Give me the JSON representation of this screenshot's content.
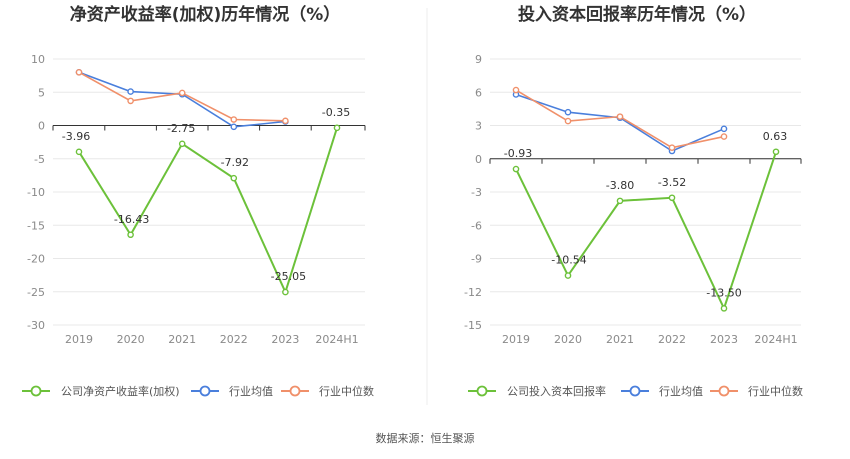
{
  "source": "数据来源：恒生聚源",
  "colors": {
    "company": "#6cc13a",
    "industry_avg": "#4a7fdc",
    "industry_median": "#f0906a",
    "axis": "#333333",
    "grid": "#e8e8e8",
    "tick": "#8a8a8a"
  },
  "chart_data": [
    {
      "type": "line",
      "title": "净资产收益率(加权)历年情况（%）",
      "categories": [
        "2019",
        "2020",
        "2021",
        "2022",
        "2023",
        "2024H1"
      ],
      "y_ticks": [
        "10",
        "5",
        "0",
        "-5",
        "-10",
        "-15",
        "-20",
        "-25",
        "-30"
      ],
      "ylim": [
        -30,
        10
      ],
      "grid": true,
      "legend_position": "bottom",
      "series": [
        {
          "name": "公司净资产收益率(加权)",
          "color": "#6cc13a",
          "values": [
            -3.96,
            -16.43,
            -2.75,
            -7.92,
            -25.05,
            -0.35
          ],
          "labels": [
            "-3.96",
            "-16.43",
            "-2.75",
            "-7.92",
            "-25.05",
            "-0.35"
          ]
        },
        {
          "name": "行业均值",
          "color": "#4a7fdc",
          "values": [
            8.0,
            5.1,
            4.7,
            -0.2,
            0.6,
            null
          ]
        },
        {
          "name": "行业中位数",
          "color": "#f0906a",
          "values": [
            8.0,
            3.7,
            4.9,
            0.9,
            0.7,
            null
          ]
        }
      ]
    },
    {
      "type": "line",
      "title": "投入资本回报率历年情况（%）",
      "categories": [
        "2019",
        "2020",
        "2021",
        "2022",
        "2023",
        "2024H1"
      ],
      "y_ticks": [
        "9",
        "6",
        "3",
        "0",
        "-3",
        "-6",
        "-9",
        "-12",
        "-15"
      ],
      "ylim": [
        -15,
        9
      ],
      "grid": true,
      "legend_position": "bottom",
      "series": [
        {
          "name": "公司投入资本回报率",
          "color": "#6cc13a",
          "values": [
            -0.93,
            -10.54,
            -3.8,
            -3.52,
            -13.5,
            0.63
          ],
          "labels": [
            "-0.93",
            "-10.54",
            "-3.80",
            "-3.52",
            "-13.50",
            "0.63"
          ]
        },
        {
          "name": "行业均值",
          "color": "#4a7fdc",
          "values": [
            5.8,
            4.2,
            3.7,
            0.7,
            2.7,
            null
          ]
        },
        {
          "name": "行业中位数",
          "color": "#f0906a",
          "values": [
            6.2,
            3.4,
            3.8,
            1.0,
            2.0,
            null
          ]
        }
      ]
    }
  ]
}
